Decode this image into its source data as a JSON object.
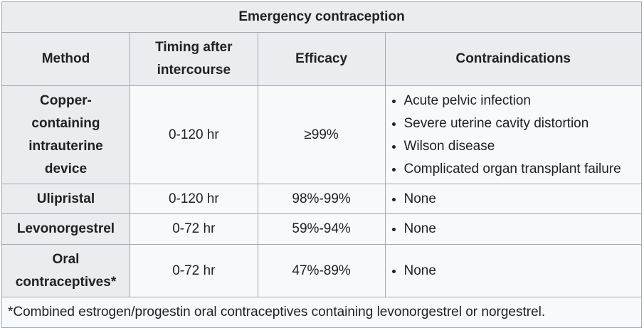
{
  "table": {
    "caption": "Emergency contraception",
    "headers": {
      "method": "Method",
      "timing": "Timing after intercourse",
      "efficacy": "Efficacy",
      "contraindications": "Contraindications"
    },
    "rows": [
      {
        "method": "Copper-containing intrauterine device",
        "timing": "0-120 hr",
        "efficacy": "≥99%",
        "contraindications": [
          "Acute pelvic infection",
          "Severe uterine cavity distortion",
          "Wilson disease",
          "Complicated organ transplant failure"
        ]
      },
      {
        "method": "Ulipristal",
        "timing": "0-120 hr",
        "efficacy": "98%-99%",
        "contraindications": [
          "None"
        ]
      },
      {
        "method": "Levonorgestrel",
        "timing": "0-72 hr",
        "efficacy": "59%-94%",
        "contraindications": [
          "None"
        ]
      },
      {
        "method": "Oral contraceptives*",
        "timing": "0-72 hr",
        "efficacy": "47%-89%",
        "contraindications": [
          "None"
        ]
      }
    ],
    "footnote": "*Combined estrogen/progestin oral contraceptives containing levonorgestrel or norgestrel."
  }
}
